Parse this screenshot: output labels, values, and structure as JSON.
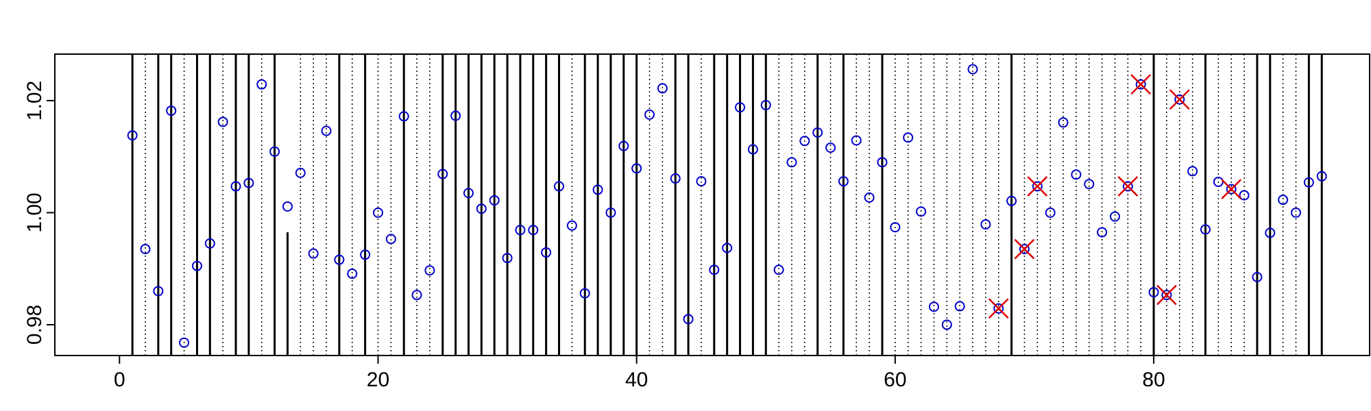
{
  "chart_data": {
    "type": "scatter",
    "title": "",
    "xlabel": "",
    "ylabel": "",
    "xlim": [
      -5,
      96.7
    ],
    "ylim": [
      0.9745,
      1.0283
    ],
    "x_ticks": [
      0,
      20,
      40,
      60,
      80
    ],
    "x_tick_labels": [
      "0",
      "20",
      "40",
      "60",
      "80"
    ],
    "y_ticks": [
      0.98,
      1.0,
      1.02
    ],
    "y_tick_labels": [
      "0.98",
      "1.00",
      "1.02"
    ],
    "grid": false,
    "legend": "none",
    "colors": {
      "points": "#0000cc",
      "flagged": "#dd0000",
      "lines": "#000000"
    },
    "solid_lines": [
      1,
      3,
      4,
      6,
      7,
      9,
      10,
      12,
      17,
      19,
      22,
      25,
      26,
      27,
      28,
      29,
      30,
      31,
      32,
      33,
      34,
      36,
      37,
      38,
      39,
      40,
      43,
      44,
      46,
      47,
      48,
      49,
      50,
      54,
      56,
      59,
      69,
      80,
      84,
      88,
      89,
      92,
      93
    ],
    "partial_lines": [
      {
        "x": 13,
        "ymax": 0.9965
      }
    ],
    "dotted_lines": [
      2,
      5,
      8,
      11,
      14,
      15,
      16,
      18,
      20,
      21,
      23,
      24,
      35,
      41,
      42,
      45,
      51,
      52,
      53,
      55,
      57,
      58,
      60,
      61,
      62,
      63,
      64,
      65,
      66,
      67,
      68,
      70,
      71,
      72,
      73,
      74,
      75,
      76,
      77,
      78,
      79,
      81,
      82,
      83,
      85,
      86,
      87,
      90,
      91
    ],
    "series": [
      {
        "x": [
          1,
          2,
          3,
          4,
          5,
          6,
          7,
          8,
          9,
          10,
          11,
          12,
          13,
          14,
          15,
          16,
          17,
          18,
          19,
          20,
          21,
          22,
          23,
          24,
          25,
          26,
          27,
          28,
          29,
          30,
          31,
          32,
          33,
          34,
          35,
          36,
          37,
          38,
          39,
          40,
          41,
          42,
          43,
          44,
          45,
          46,
          47,
          48,
          49,
          50,
          51,
          52,
          53,
          54,
          55,
          56,
          57,
          58,
          59,
          60,
          61,
          62,
          63,
          64,
          65,
          66,
          67,
          68,
          69,
          70,
          71,
          72,
          73,
          74,
          75,
          76,
          77,
          78,
          79,
          80,
          81,
          82,
          83,
          84,
          85,
          86,
          87,
          88,
          89,
          90,
          91,
          92,
          93
        ],
        "y": [
          1.0138,
          0.9935,
          0.986,
          1.0182,
          0.9768,
          0.9905,
          0.9945,
          1.0162,
          1.0047,
          1.0053,
          1.0229,
          1.0109,
          1.0011,
          1.0071,
          0.9927,
          1.0146,
          0.9916,
          0.9891,
          0.9925,
          1.0,
          0.9953,
          1.0172,
          0.9853,
          0.9897,
          1.0069,
          1.0173,
          1.0035,
          1.0007,
          1.0022,
          0.9919,
          0.9969,
          0.9969,
          0.9929,
          1.0047,
          0.9977,
          0.9856,
          1.0041,
          1.0,
          1.0119,
          1.0079,
          1.0175,
          1.0222,
          1.0061,
          0.981,
          1.0056,
          0.9898,
          0.9937,
          1.0188,
          1.0113,
          1.0192,
          0.9898,
          1.009,
          1.0128,
          1.0143,
          1.0116,
          1.0056,
          1.0129,
          1.0027,
          1.009,
          0.9974,
          1.0134,
          1.0002,
          0.9832,
          0.98,
          0.9833,
          1.0256,
          0.9979,
          0.9829,
          1.0021,
          0.9935,
          1.0047,
          1.0,
          1.0161,
          1.0068,
          1.0051,
          0.9965,
          0.9993,
          1.0047,
          1.0229,
          0.9858,
          0.9853,
          1.0202,
          1.0074,
          0.997,
          1.0055,
          1.0042,
          1.0031,
          0.9885,
          0.9964,
          1.0023,
          1.0,
          1.0054,
          1.0065
        ]
      }
    ],
    "flagged": [
      {
        "x": 68,
        "y": 0.9829
      },
      {
        "x": 70,
        "y": 0.9935
      },
      {
        "x": 71,
        "y": 1.0047
      },
      {
        "x": 78,
        "y": 1.0047
      },
      {
        "x": 79,
        "y": 1.0229
      },
      {
        "x": 81,
        "y": 0.9853
      },
      {
        "x": 82,
        "y": 1.0202
      },
      {
        "x": 86,
        "y": 1.0042
      }
    ]
  }
}
